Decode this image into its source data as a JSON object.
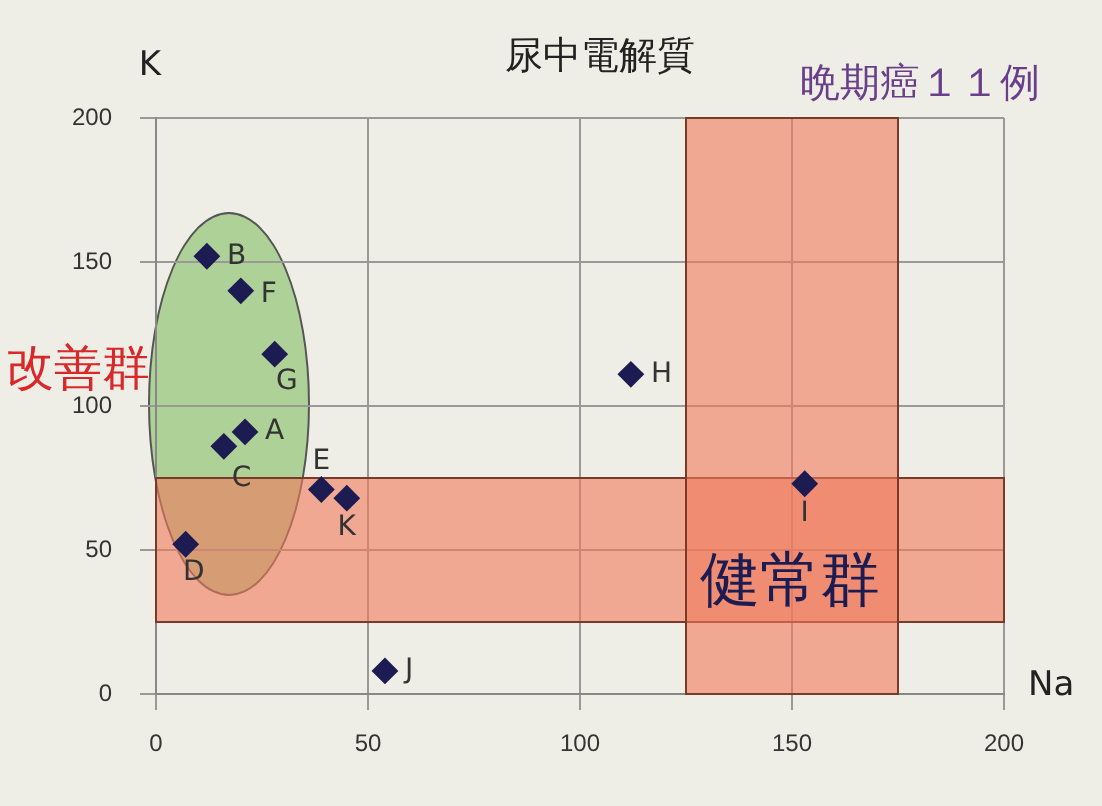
{
  "chart_data": {
    "type": "scatter",
    "title": "尿中電解質",
    "subtitle": "晩期癌１１例",
    "xlabel": "Na",
    "ylabel": "K",
    "annotations": [
      "改善群",
      "健常群"
    ],
    "series": [
      {
        "color": "#1c1c52",
        "x": [
          21,
          12,
          16,
          7,
          39,
          20,
          28,
          112,
          153,
          54,
          45
        ],
        "values": [
          91,
          152,
          86,
          52,
          71,
          140,
          118,
          111,
          73,
          8,
          68
        ],
        "value_labels": [
          "A",
          "B",
          "C",
          "D",
          "E",
          "F",
          "G",
          "H",
          "I",
          "J",
          "K"
        ]
      }
    ],
    "bands": [
      {
        "axis": "y",
        "from": 25,
        "to": 75,
        "color": "#f07a5c"
      },
      {
        "axis": "x",
        "from": 125,
        "to": 175,
        "color": "#f07a5c"
      }
    ],
    "xlim": [
      0,
      200
    ],
    "ylim": [
      0,
      200
    ],
    "xticks": [
      0,
      50,
      100,
      150,
      200
    ],
    "yticks": [
      0,
      50,
      100,
      150,
      200
    ],
    "grid": true,
    "legend": false,
    "marker": "diamond"
  }
}
